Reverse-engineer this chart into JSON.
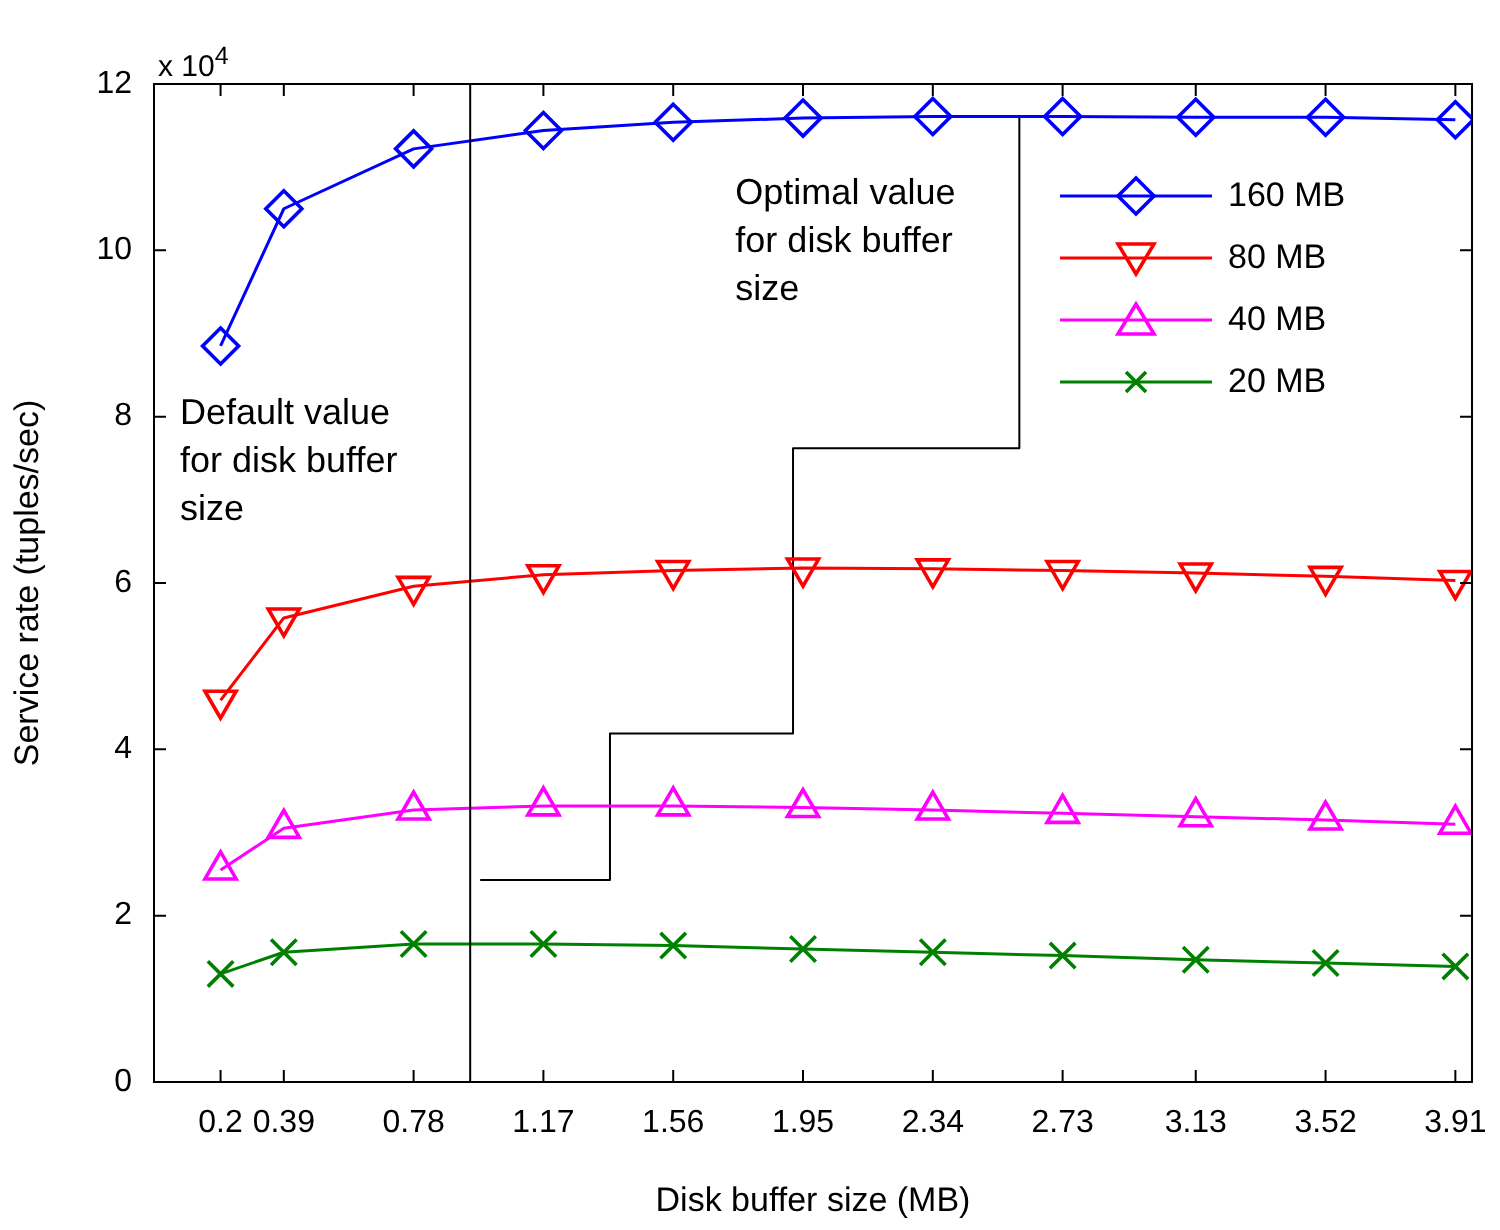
{
  "chart_data": {
    "type": "line",
    "xlabel": "Disk buffer size (MB)",
    "ylabel": "Service rate (tuples/sec)",
    "x": [
      0.2,
      0.39,
      0.78,
      1.17,
      1.56,
      1.95,
      2.34,
      2.73,
      3.13,
      3.52,
      3.91
    ],
    "xlim": [
      0,
      3.96
    ],
    "xticks": [
      0.2,
      0.39,
      0.78,
      1.17,
      1.56,
      1.95,
      2.34,
      2.73,
      3.13,
      3.52,
      3.91
    ],
    "ylim": [
      0,
      12
    ],
    "yticks": [
      0,
      2,
      4,
      6,
      8,
      10,
      12
    ],
    "series": [
      {
        "name": "160 MB",
        "color": "#0000ff",
        "marker": "diamond",
        "values": [
          8.85,
          10.5,
          11.22,
          11.44,
          11.54,
          11.59,
          11.61,
          11.61,
          11.6,
          11.6,
          11.57
        ]
      },
      {
        "name": "80 MB",
        "color": "#ff0000",
        "marker": "triangle-down",
        "values": [
          4.59,
          5.58,
          5.96,
          6.1,
          6.15,
          6.18,
          6.17,
          6.15,
          6.12,
          6.08,
          6.03
        ]
      },
      {
        "name": "40 MB",
        "color": "#ff00ff",
        "marker": "triangle",
        "values": [
          2.55,
          3.05,
          3.27,
          3.32,
          3.32,
          3.3,
          3.27,
          3.23,
          3.19,
          3.15,
          3.1
        ]
      },
      {
        "name": "20 MB",
        "color": "#008000",
        "marker": "cross",
        "values": [
          1.3,
          1.56,
          1.66,
          1.66,
          1.64,
          1.6,
          1.56,
          1.52,
          1.47,
          1.43,
          1.39
        ]
      },
      {
        "type": "step",
        "color": "#000000",
        "marker": "none",
        "x": [
          0.98,
          1.37,
          1.92,
          2.6
        ],
        "values": [
          2.43,
          4.19,
          7.62,
          11.61
        ]
      }
    ],
    "legend": "top right",
    "ref_lines": [
      {
        "axis": "x",
        "value": 0.95,
        "label": "Default value for disk buffer size",
        "color": "#000000"
      }
    ],
    "annotations": [
      "x 10$^{4}$",
      {
        "text": "Optimal value for disk buffer size",
        "x": 2.6,
        "y": 11.61
      }
    ]
  }
}
